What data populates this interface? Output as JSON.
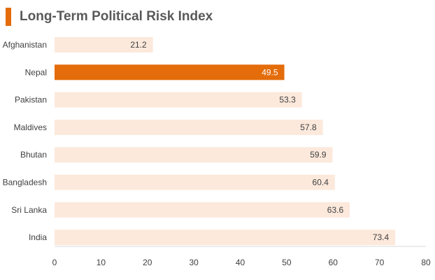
{
  "title": "Long-Term Political Risk Index",
  "colors": {
    "accent": "#e46c0a",
    "bar": "#fce9dc",
    "highlight": "#e46c0a",
    "label_dark": "#404040",
    "label_light": "#ffffff"
  },
  "chart_data": {
    "type": "bar",
    "orientation": "horizontal",
    "title": "Long-Term Political Risk Index",
    "categories": [
      "Afghanistan",
      "Nepal",
      "Pakistan",
      "Maldives",
      "Bhutan",
      "Bangladesh",
      "Sri Lanka",
      "India"
    ],
    "values": [
      21.2,
      49.5,
      53.3,
      57.8,
      59.9,
      60.4,
      63.6,
      73.4
    ],
    "value_labels": [
      "21.2",
      "49.5",
      "53.3",
      "57.8",
      "59.9",
      "60.4",
      "63.6",
      "73.4"
    ],
    "highlight": "Nepal",
    "xlim": [
      0,
      80
    ],
    "xticks": [
      0,
      10,
      20,
      30,
      40,
      50,
      60,
      70,
      80
    ],
    "xtick_labels": [
      "0",
      "10",
      "20",
      "30",
      "40",
      "50",
      "60",
      "70",
      "80"
    ],
    "xlabel": "",
    "ylabel": "",
    "grid": false,
    "legend": "none"
  }
}
